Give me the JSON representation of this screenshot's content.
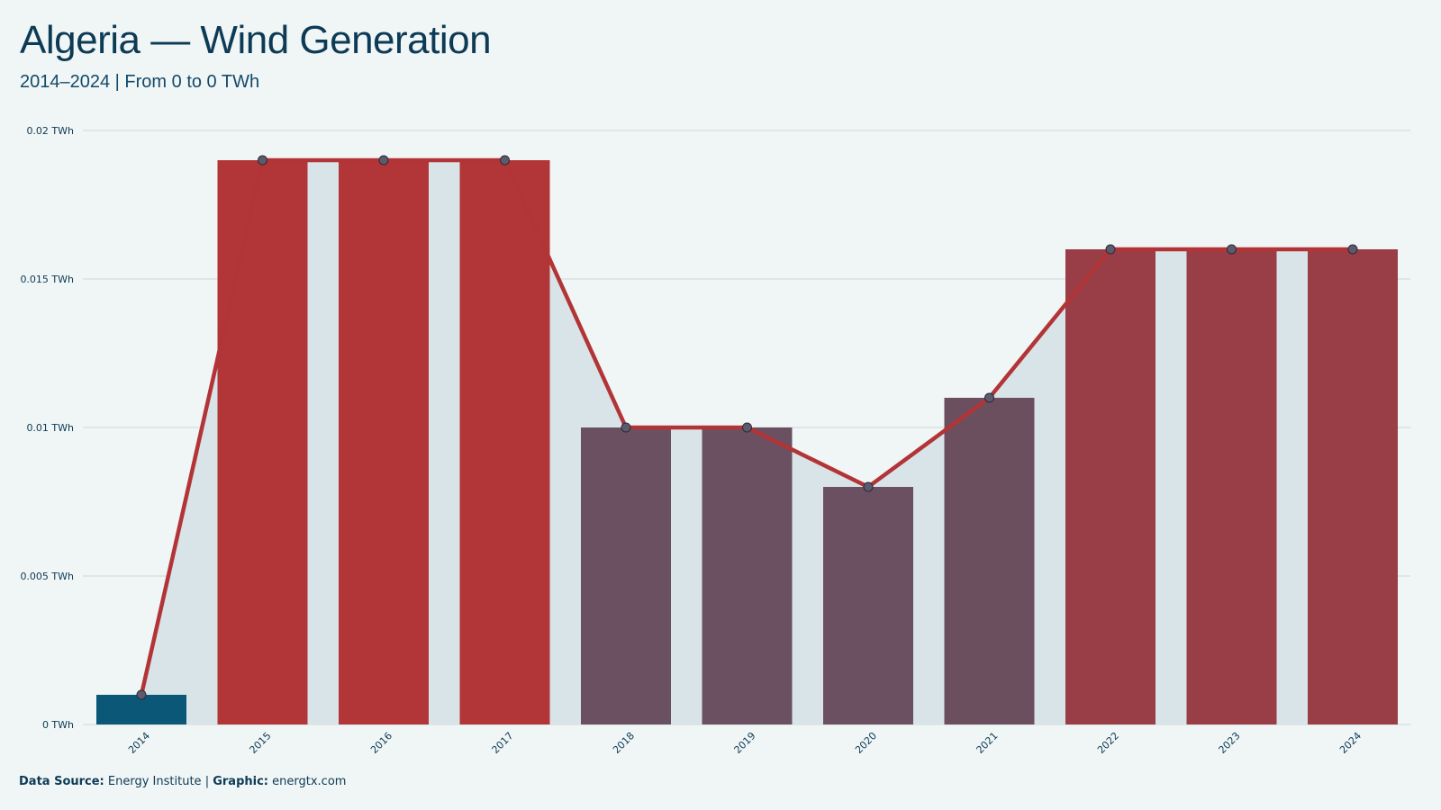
{
  "header": {
    "title": "Algeria — Wind Generation",
    "subtitle": "2014–2024 | From 0 to 0 TWh"
  },
  "footer": {
    "source_label": "Data Source:",
    "source_value": "Energy Institute",
    "separator": "|",
    "graphic_label": "Graphic:",
    "graphic_value": "energtx.com"
  },
  "chart_data": {
    "type": "bar",
    "overlay": "line",
    "categories": [
      "2014",
      "2015",
      "2016",
      "2017",
      "2018",
      "2019",
      "2020",
      "2021",
      "2022",
      "2023",
      "2024"
    ],
    "series": [
      {
        "values": [
          0.001,
          0.019,
          0.019,
          0.019,
          0.01,
          0.01,
          0.008,
          0.011,
          0.016,
          0.016,
          0.016
        ]
      }
    ],
    "ylim": [
      0,
      0.02
    ],
    "yticks": [
      {
        "value": 0,
        "label": "0 TWh"
      },
      {
        "value": 0.005,
        "label": "0.005 TWh"
      },
      {
        "value": 0.01,
        "label": "0.01 TWh"
      },
      {
        "value": 0.015,
        "label": "0.015 TWh"
      },
      {
        "value": 0.02,
        "label": "0.02 TWh"
      }
    ],
    "grid": true,
    "colors": {
      "bar_low": "#0a5777",
      "bar_high": "#b23538",
      "line": "#b33437",
      "area": "#d8e4e8",
      "grid": "#cfd8dc",
      "marker": "#5d5a6c"
    }
  }
}
